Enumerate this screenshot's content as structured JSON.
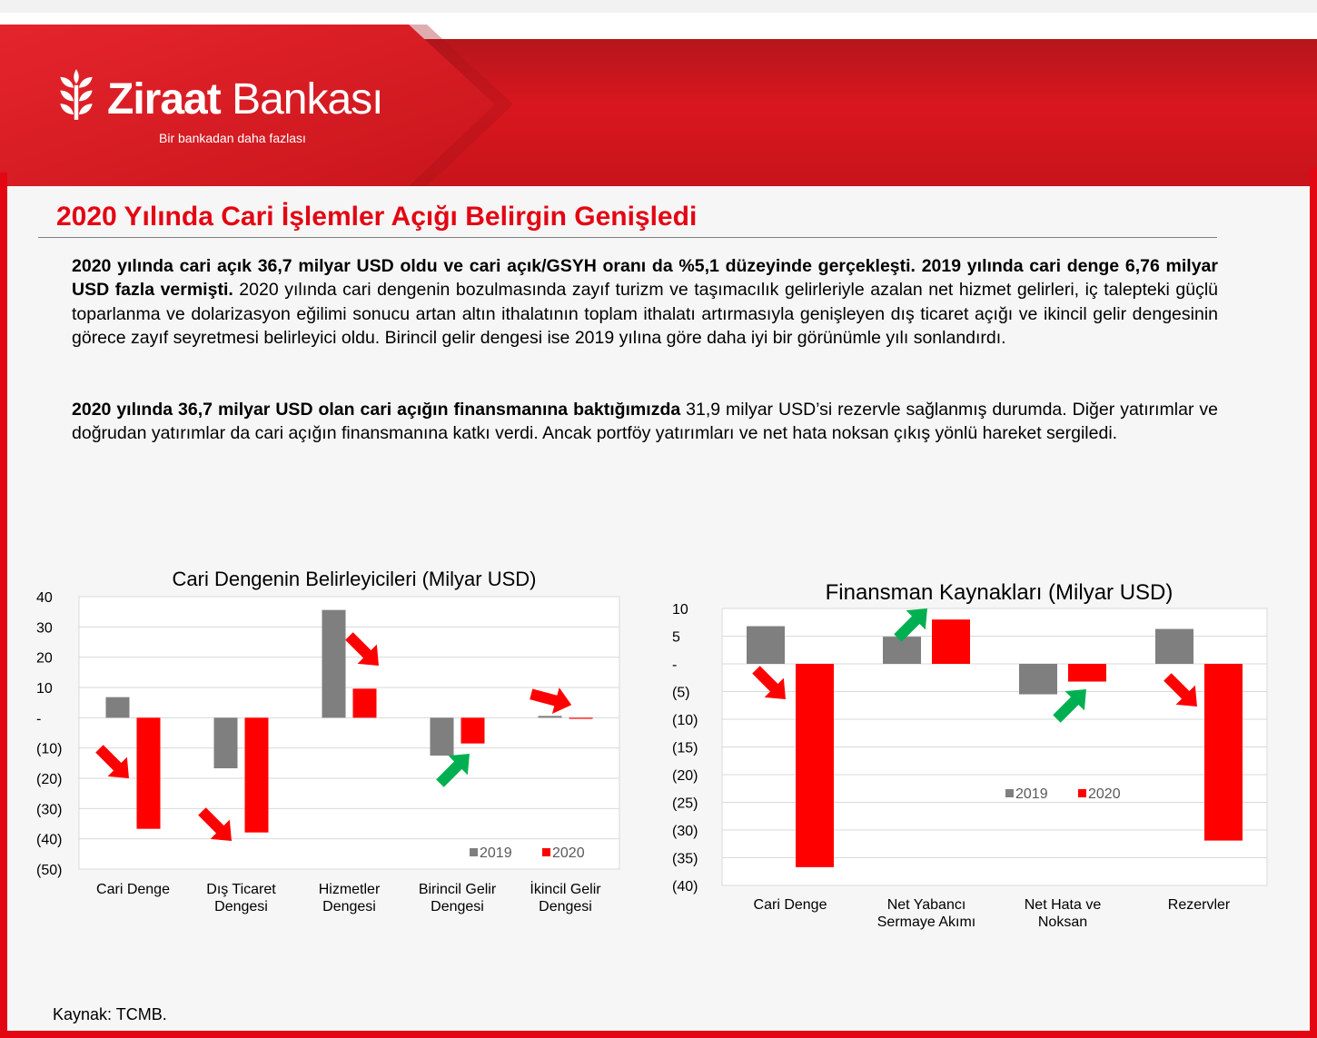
{
  "brand": {
    "name_bold": "Ziraat",
    "name_regular": "Bankası",
    "slogan": "Bir bankadan daha fazlası",
    "logo_icon": "wheat-icon",
    "colors": {
      "brand_red": "#e30613",
      "dark_red": "#a6171c",
      "series_2019": "#7f7f7f",
      "series_2020": "#ff0000",
      "arrow_red": "#ff0000",
      "arrow_green": "#00b050"
    }
  },
  "page": {
    "title": "2020 Yılında Cari İşlemler Açığı Belirgin Genişledi",
    "p1_bold": "2020 yılında cari açık 36,7 milyar USD oldu ve cari açık/GSYH oranı da %5,1 düzeyinde gerçekleşti. 2019 yılında cari denge 6,76 milyar USD fazla vermişti.",
    "p1_rest": " 2020 yılında cari dengenin bozulmasında zayıf turizm ve taşımacılık gelirleriyle azalan net hizmet gelirleri, iç talepteki güçlü toparlanma ve dolarizasyon eğilimi sonucu artan altın ithalatının toplam ithalatı artırmasıyla genişleyen dış ticaret açığı ve ikincil gelir dengesinin görece zayıf seyretmesi belirleyici oldu. Birincil gelir dengesi ise 2019 yılına göre daha iyi bir görünümle yılı sonlandırdı.",
    "p2_bold": "2020 yılında 36,7 milyar USD olan cari açığın finansmanına baktığımızda",
    "p2_rest": " 31,9 milyar USD’si rezervle sağlanmış durumda. Diğer yatırımlar ve doğrudan yatırımlar da cari açığın finansmanına katkı verdi. Ancak portföy yatırımları ve net hata noksan çıkış yönlü hareket sergiledi.",
    "source": "Kaynak: TCMB."
  },
  "chart_data": [
    {
      "type": "bar",
      "title": "Cari Dengenin Belirleyicileri (Milyar USD)",
      "categories": [
        [
          "Cari Denge"
        ],
        [
          "Dış Ticaret",
          "Dengesi"
        ],
        [
          "Hizmetler",
          "Dengesi"
        ],
        [
          "Birincil Gelir",
          "Dengesi"
        ],
        [
          "İkincil Gelir",
          "Dengesi"
        ]
      ],
      "series": [
        {
          "name": "2019",
          "color": "#7f7f7f",
          "values": [
            6.8,
            -16.7,
            35.6,
            -12.5,
            0.6
          ]
        },
        {
          "name": "2020",
          "color": "#ff0000",
          "values": [
            -36.7,
            -37.9,
            9.6,
            -8.5,
            -0.1
          ]
        }
      ],
      "ylim": [
        -50,
        40
      ],
      "yticks": [
        40,
        30,
        20,
        10,
        0,
        -10,
        -20,
        -30,
        -40,
        -50
      ],
      "ytick_labels": [
        "40",
        "30",
        "20",
        "10",
        "-",
        "(10)",
        "(20)",
        "(30)",
        "(40)",
        "(50)"
      ],
      "grid": true,
      "legend": "bottom-right",
      "annotations": [
        {
          "kind": "arrow",
          "color": "red",
          "direction": "down-right",
          "category": 0
        },
        {
          "kind": "arrow",
          "color": "red",
          "direction": "down-right",
          "category": 1
        },
        {
          "kind": "arrow",
          "color": "red",
          "direction": "down-right",
          "category": 2
        },
        {
          "kind": "arrow",
          "color": "green",
          "direction": "up-right",
          "category": 3
        },
        {
          "kind": "arrow",
          "color": "red",
          "direction": "right",
          "category": 4
        }
      ]
    },
    {
      "type": "bar",
      "title": "Finansman Kaynakları (Milyar USD)",
      "categories": [
        [
          "Cari Denge"
        ],
        [
          "Net Yabancı",
          "Sermaye Akımı"
        ],
        [
          "Net Hata ve",
          "Noksan"
        ],
        [
          "Rezervler"
        ]
      ],
      "series": [
        {
          "name": "2019",
          "color": "#7f7f7f",
          "values": [
            6.8,
            4.9,
            -5.5,
            6.3
          ]
        },
        {
          "name": "2020",
          "color": "#ff0000",
          "values": [
            -36.7,
            8.0,
            -3.2,
            -31.9
          ]
        }
      ],
      "ylim": [
        -40,
        10
      ],
      "yticks": [
        10,
        5,
        0,
        -5,
        -10,
        -15,
        -20,
        -25,
        -30,
        -35,
        -40
      ],
      "ytick_labels": [
        "10",
        "5",
        "-",
        "(5)",
        "(10)",
        "(15)",
        "(20)",
        "(25)",
        "(30)",
        "(35)",
        "(40)"
      ],
      "grid": true,
      "legend": "center-right",
      "annotations": [
        {
          "kind": "arrow",
          "color": "red",
          "direction": "down-right",
          "category": 0
        },
        {
          "kind": "arrow",
          "color": "green",
          "direction": "up-right",
          "category": 1
        },
        {
          "kind": "arrow",
          "color": "green",
          "direction": "up-right",
          "category": 2
        },
        {
          "kind": "arrow",
          "color": "red",
          "direction": "down-right",
          "category": 3
        }
      ]
    }
  ]
}
